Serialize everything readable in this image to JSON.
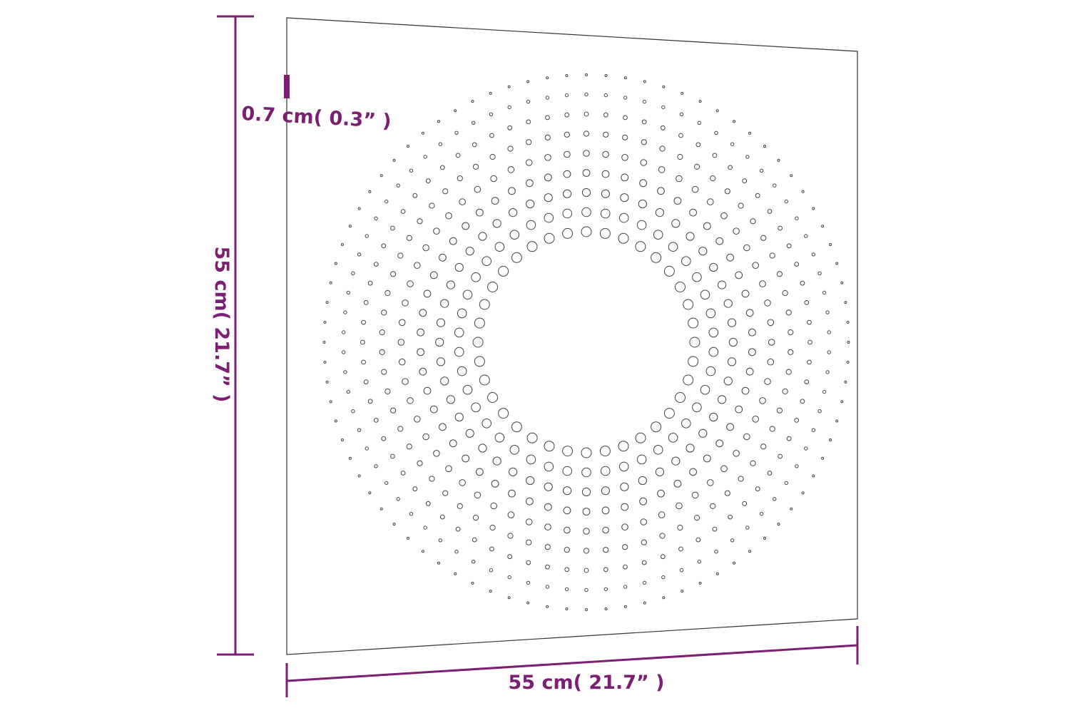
{
  "dimensions": {
    "thickness": "0.7 cm( 0.3” )",
    "height": "55 cm( 21.7” )",
    "width": "55 cm( 21.7” )"
  }
}
